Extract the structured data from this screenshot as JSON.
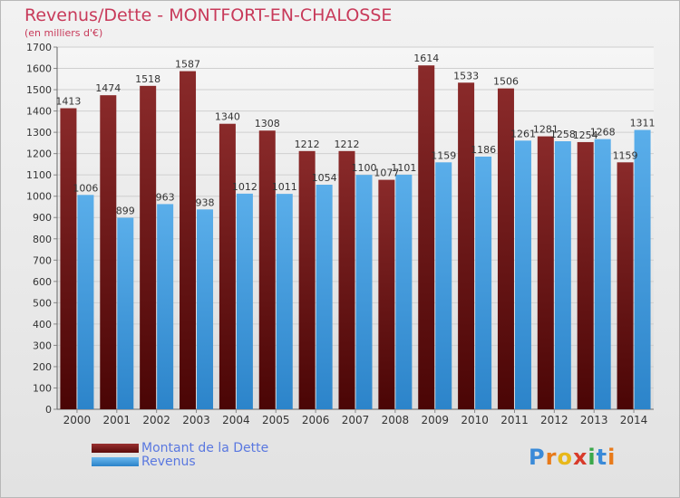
{
  "title": "Revenus/Dette - MONTFORT-EN-CHALOSSE",
  "subtitle": "(en milliers d'€)",
  "logo_text": "Proxiti",
  "colors": {
    "debt": "#7a1818",
    "revenue": "#3a96dc",
    "title": "#c83a5a",
    "legend_text": "#5a78e0"
  },
  "legend": [
    {
      "label": "Montant de la Dette",
      "color": "#7a1818"
    },
    {
      "label": "Revenus",
      "color": "#3a96dc"
    }
  ],
  "chart_data": {
    "type": "bar",
    "title": "Revenus/Dette - MONTFORT-EN-CHALOSSE",
    "ylabel": "(en milliers d'€)",
    "ylim": [
      0,
      1700
    ],
    "yticks": [
      0,
      100,
      200,
      300,
      400,
      500,
      600,
      700,
      800,
      900,
      1000,
      1100,
      1200,
      1300,
      1400,
      1500,
      1600,
      1700
    ],
    "grid": true,
    "legend_position": "bottom-left",
    "categories": [
      "2000",
      "2001",
      "2002",
      "2003",
      "2004",
      "2005",
      "2006",
      "2007",
      "2008",
      "2009",
      "2010",
      "2011",
      "2012",
      "2013",
      "2014"
    ],
    "series": [
      {
        "name": "Montant de la Dette",
        "values": [
          1413,
          1474,
          1518,
          1587,
          1340,
          1308,
          1212,
          1212,
          1077,
          1614,
          1533,
          1506,
          1281,
          1254,
          1159
        ]
      },
      {
        "name": "Revenus",
        "values": [
          1006,
          899,
          963,
          938,
          1012,
          1011,
          1054,
          1100,
          1101,
          1159,
          1186,
          1261,
          1258,
          1268,
          1311
        ]
      }
    ]
  }
}
